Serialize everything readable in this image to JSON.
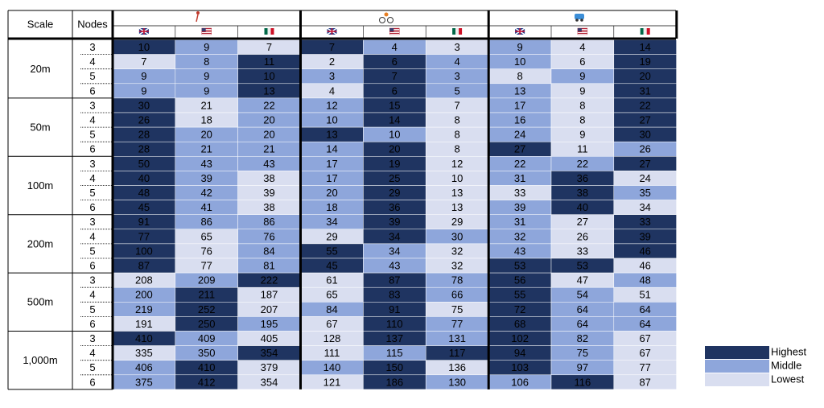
{
  "header": {
    "scale": "Scale",
    "nodes": "Nodes"
  },
  "groups": [
    {
      "scale": "20m",
      "nodes": [
        3,
        4,
        5,
        6
      ],
      "values": [
        [
          10,
          9,
          7,
          7,
          4,
          3,
          9,
          4,
          14
        ],
        [
          7,
          8,
          11,
          2,
          6,
          4,
          10,
          6,
          19
        ],
        [
          9,
          9,
          10,
          3,
          7,
          3,
          8,
          9,
          20
        ],
        [
          9,
          9,
          13,
          4,
          6,
          5,
          13,
          9,
          31
        ]
      ]
    },
    {
      "scale": "50m",
      "nodes": [
        3,
        4,
        5,
        6
      ],
      "values": [
        [
          30,
          21,
          22,
          12,
          15,
          7,
          17,
          8,
          22
        ],
        [
          26,
          18,
          20,
          10,
          14,
          8,
          16,
          8,
          27
        ],
        [
          28,
          20,
          20,
          13,
          10,
          8,
          24,
          9,
          30
        ],
        [
          28,
          21,
          21,
          14,
          20,
          8,
          27,
          11,
          26
        ]
      ]
    },
    {
      "scale": "100m",
      "nodes": [
        3,
        4,
        5,
        6
      ],
      "values": [
        [
          50,
          43,
          43,
          17,
          19,
          12,
          22,
          22,
          27
        ],
        [
          40,
          39,
          38,
          17,
          25,
          10,
          31,
          36,
          24
        ],
        [
          48,
          42,
          39,
          20,
          29,
          13,
          33,
          38,
          35
        ],
        [
          45,
          41,
          38,
          18,
          36,
          13,
          39,
          40,
          34
        ]
      ]
    },
    {
      "scale": "200m",
      "nodes": [
        3,
        4,
        5,
        6
      ],
      "values": [
        [
          91,
          86,
          86,
          34,
          39,
          29,
          31,
          27,
          33
        ],
        [
          77,
          65,
          76,
          29,
          34,
          30,
          32,
          26,
          39
        ],
        [
          100,
          76,
          84,
          55,
          34,
          32,
          43,
          33,
          46
        ],
        [
          87,
          77,
          81,
          45,
          43,
          32,
          53,
          53,
          46
        ]
      ]
    },
    {
      "scale": "500m",
      "nodes": [
        3,
        4,
        5,
        6
      ],
      "values": [
        [
          208,
          209,
          222,
          61,
          87,
          78,
          56,
          47,
          48
        ],
        [
          200,
          211,
          187,
          65,
          83,
          66,
          55,
          54,
          51
        ],
        [
          219,
          252,
          207,
          84,
          91,
          75,
          72,
          64,
          64
        ],
        [
          191,
          250,
          195,
          67,
          110,
          77,
          68,
          64,
          64
        ]
      ]
    },
    {
      "scale": "1,000m",
      "nodes": [
        3,
        4,
        5,
        6
      ],
      "values": [
        [
          410,
          409,
          405,
          128,
          137,
          131,
          102,
          82,
          67
        ],
        [
          335,
          350,
          354,
          111,
          115,
          117,
          94,
          75,
          67
        ],
        [
          406,
          410,
          379,
          140,
          150,
          136,
          103,
          97,
          77
        ],
        [
          375,
          412,
          354,
          121,
          186,
          130,
          106,
          116,
          87
        ]
      ]
    }
  ],
  "legend": [
    {
      "label": "Highest",
      "color": "#1f3461"
    },
    {
      "label": "Middle",
      "color": "#8ea6db"
    },
    {
      "label": "Lowest",
      "color": "#d9def0"
    }
  ]
}
